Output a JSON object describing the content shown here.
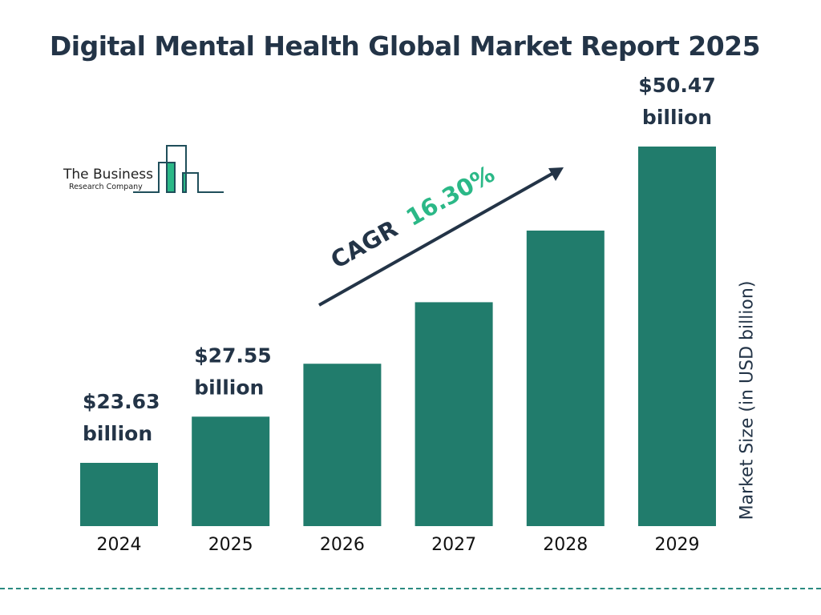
{
  "chart_data": {
    "type": "bar",
    "title": "Digital Mental Health Global Market Report 2025",
    "categories": [
      "2024",
      "2025",
      "2026",
      "2027",
      "2028",
      "2029"
    ],
    "values": [
      23.63,
      27.55,
      32.04,
      37.26,
      43.34,
      50.47
    ],
    "data_labels": [
      {
        "category": "2024",
        "line1": "$23.63",
        "line2": "billion"
      },
      {
        "category": "2025",
        "line1": "$27.55",
        "line2": "billion"
      },
      {
        "category": "2029",
        "line1": "$50.47",
        "line2": "billion"
      }
    ],
    "xlabel": "",
    "ylabel": "Market Size (in USD billion)",
    "annotation": {
      "prefix": "CAGR",
      "value": "16.30%"
    },
    "grid": false,
    "colors": {
      "bar": "#217c6c",
      "text": "#233447",
      "cagr": "#2bb887",
      "logo_fill": "#2bb887",
      "logo_line": "#1f4e5a"
    }
  },
  "logo": {
    "line1": "The Business",
    "line2": "Research Company"
  }
}
